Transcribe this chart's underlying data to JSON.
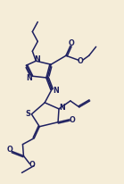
{
  "bg_color": "#f5edd8",
  "lc": "#1e2060",
  "lw": 1.1,
  "fs": 5.8,
  "figsize": [
    1.39,
    2.06
  ],
  "dpi": 100,
  "xlim": [
    0,
    139
  ],
  "ylim": [
    206,
    0
  ]
}
